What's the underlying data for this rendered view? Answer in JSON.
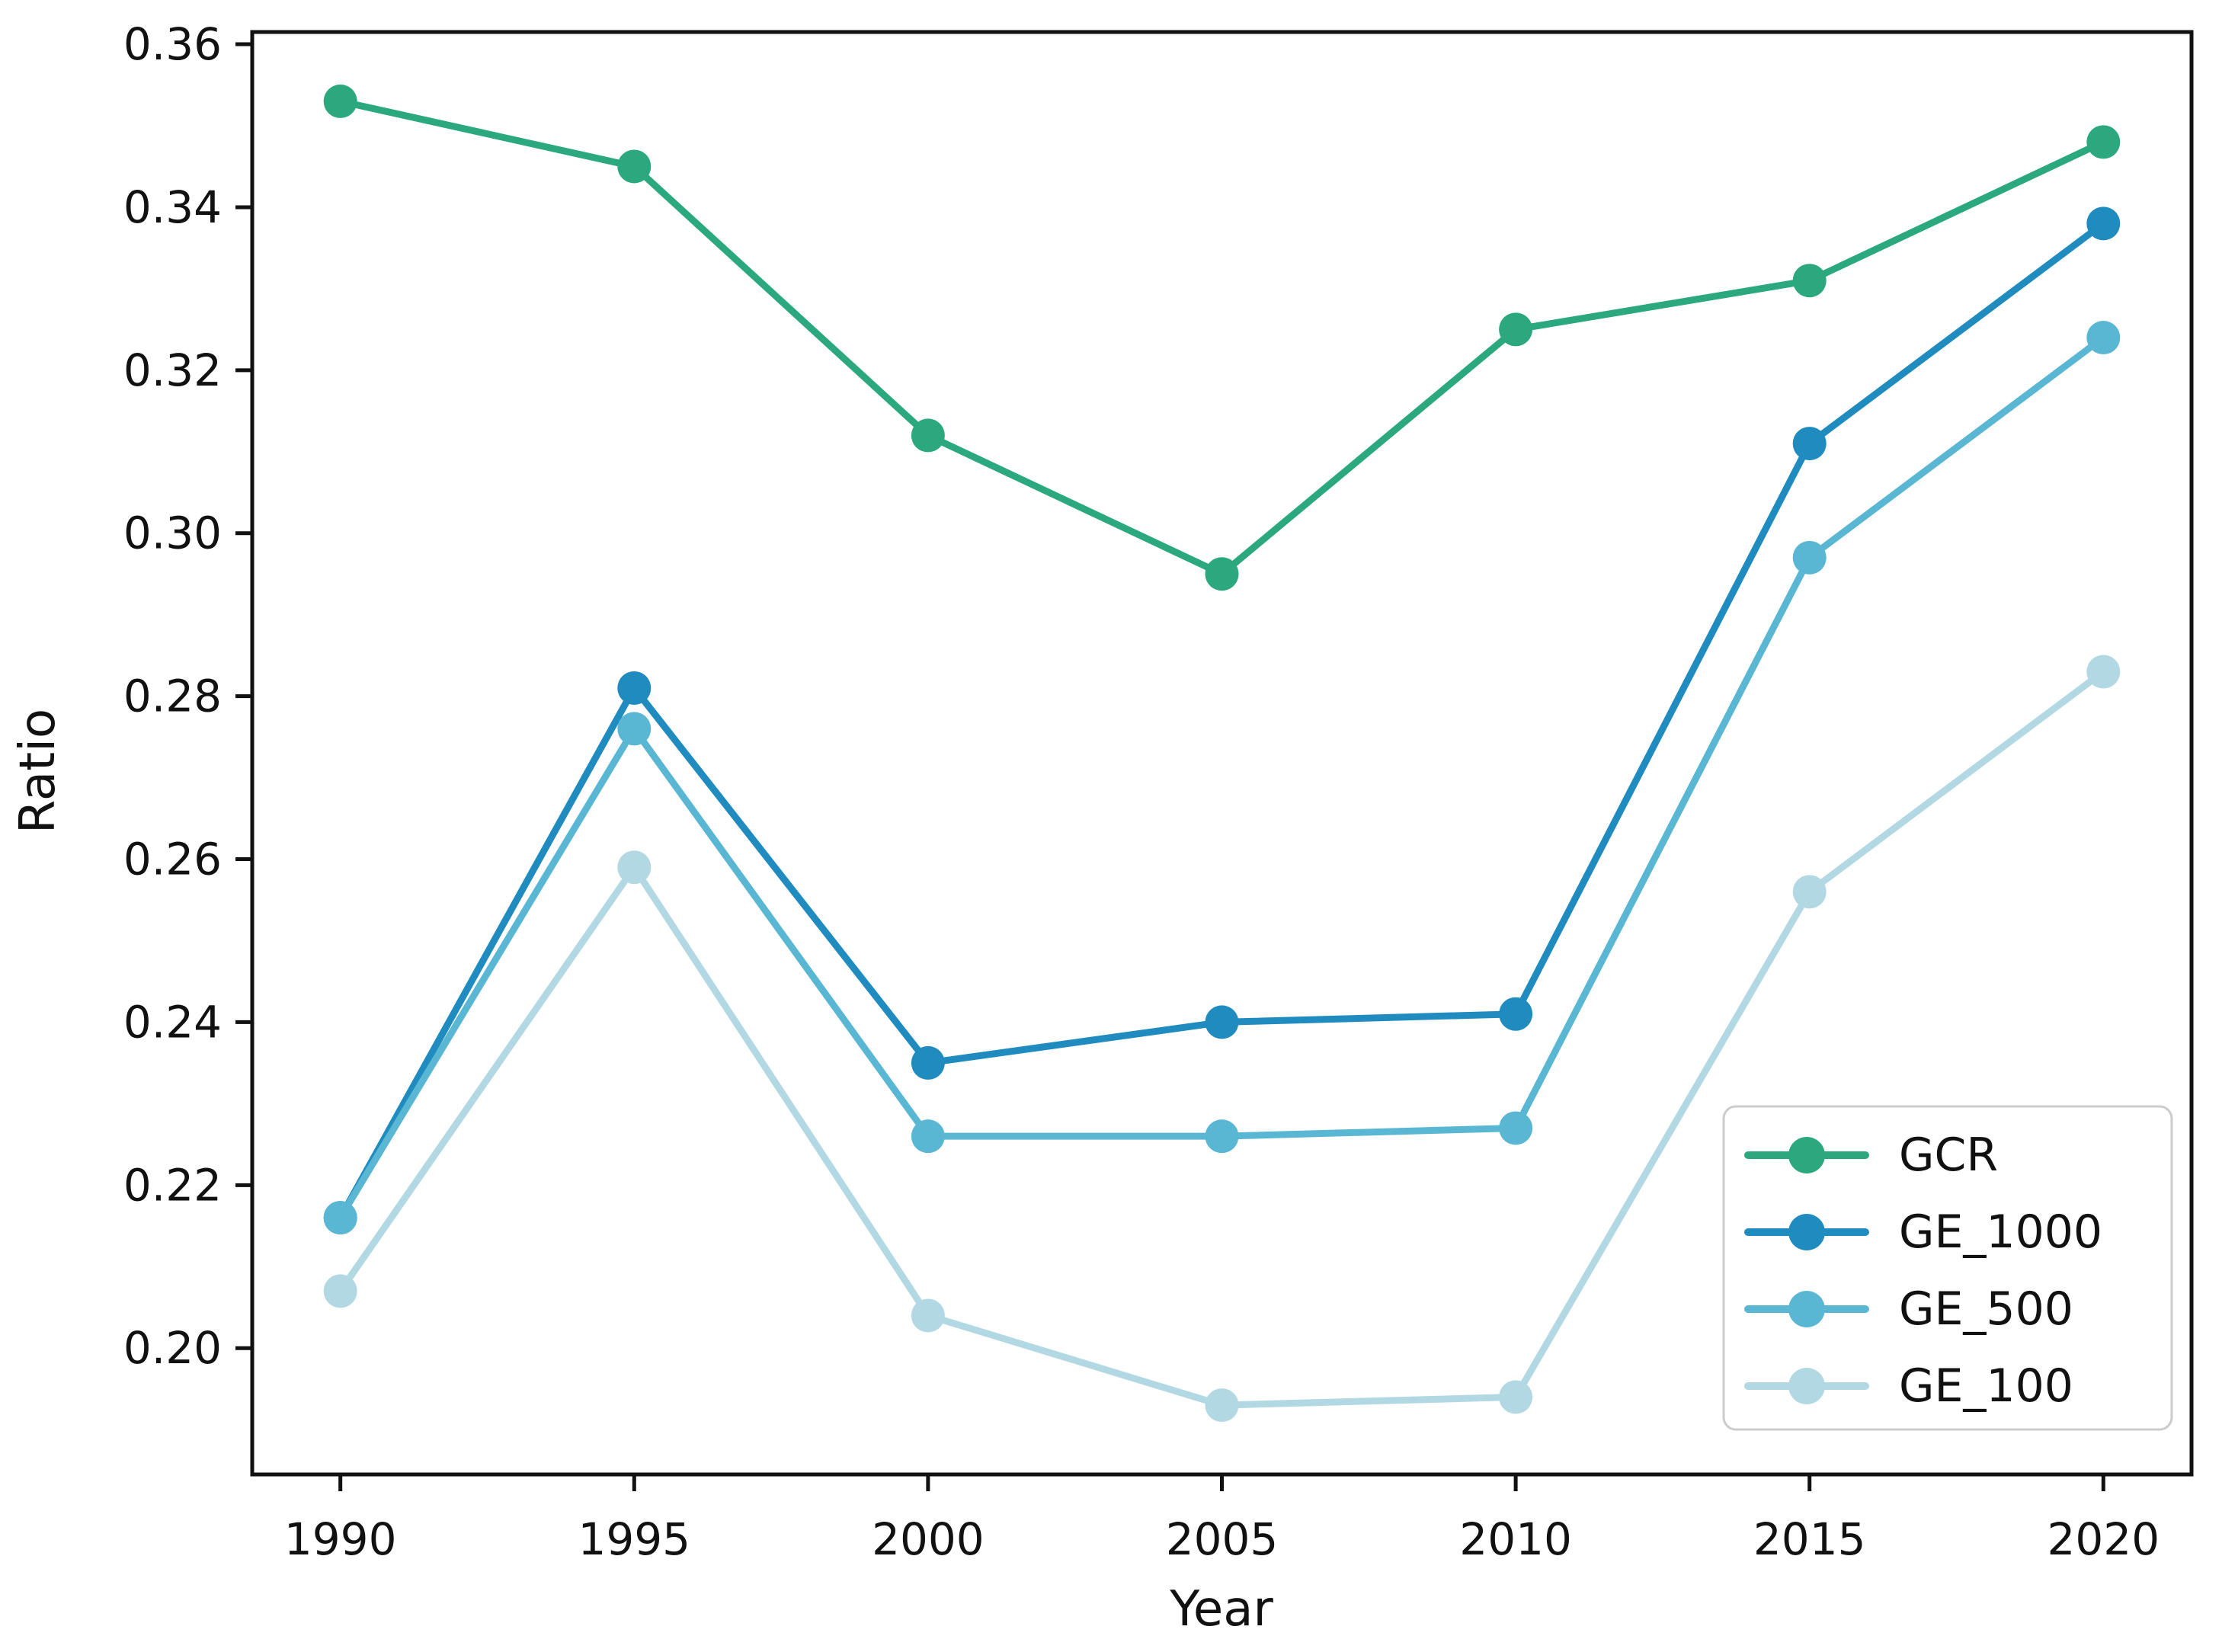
{
  "figure": {
    "background": "#ffffff",
    "text_color": "#111111",
    "spine_color": "#111111",
    "legend_border_color": "#cccccc"
  },
  "chart_data": {
    "type": "line",
    "title": "",
    "xlabel": "Year",
    "ylabel": "Ratio",
    "x": [
      1990,
      1995,
      2000,
      2005,
      2010,
      2015,
      2020
    ],
    "series": [
      {
        "name": "GCR",
        "color": "#2ba87d",
        "marker": "circle",
        "values": [
          0.353,
          0.345,
          0.312,
          0.295,
          0.325,
          0.331,
          0.348
        ]
      },
      {
        "name": "GE_1000",
        "color": "#1f8bbf",
        "marker": "circle",
        "values": [
          0.216,
          0.281,
          0.235,
          0.24,
          0.241,
          0.311,
          0.338
        ]
      },
      {
        "name": "GE_500",
        "color": "#5ab7d3",
        "marker": "circle",
        "values": [
          0.216,
          0.276,
          0.226,
          0.226,
          0.227,
          0.297,
          0.324
        ]
      },
      {
        "name": "GE_100",
        "color": "#b2d8e4",
        "marker": "circle",
        "values": [
          0.207,
          0.259,
          0.204,
          0.193,
          0.194,
          0.256,
          0.283
        ]
      }
    ],
    "xticks": [
      1990,
      1995,
      2000,
      2005,
      2010,
      2015,
      2020
    ],
    "xtick_labels": [
      "1990",
      "1995",
      "2000",
      "2005",
      "2010",
      "2015",
      "2020"
    ],
    "yticks": [
      0.2,
      0.22,
      0.24,
      0.26,
      0.28,
      0.3,
      0.32,
      0.34,
      0.36
    ],
    "ytick_labels": [
      "0.20",
      "0.22",
      "0.24",
      "0.26",
      "0.28",
      "0.30",
      "0.32",
      "0.34",
      "0.36"
    ],
    "xlim": [
      1988.5,
      2021.5
    ],
    "ylim": [
      0.1845,
      0.3615
    ],
    "grid": false,
    "legend": {
      "position": "lower right",
      "entries": [
        "GCR",
        "GE_1000",
        "GE_500",
        "GE_100"
      ]
    }
  }
}
